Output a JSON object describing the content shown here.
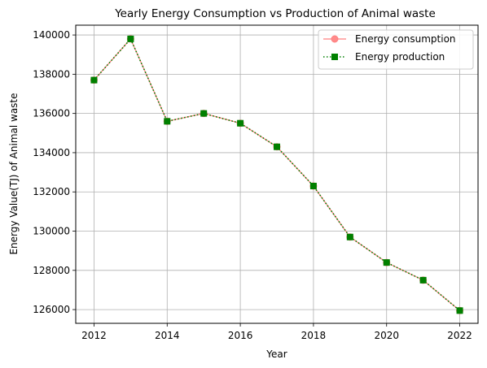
{
  "chart_data": {
    "type": "line",
    "title": "Yearly Energy Consumption vs Production of Animal waste",
    "xlabel": "Year",
    "ylabel": "Energy Value(TJ) of Animal waste",
    "x": [
      2012,
      2013,
      2014,
      2015,
      2016,
      2017,
      2018,
      2019,
      2020,
      2021,
      2022
    ],
    "xlim": [
      2011.5,
      2022.5
    ],
    "ylim": [
      125300,
      140500
    ],
    "xticks": [
      2012,
      2014,
      2016,
      2018,
      2020,
      2022
    ],
    "yticks": [
      126000,
      128000,
      130000,
      132000,
      134000,
      136000,
      138000,
      140000
    ],
    "grid": true,
    "legend_position": "top-right",
    "series": [
      {
        "name": "Energy consumption",
        "color": "#ff7f7f",
        "marker": "circle",
        "line_style": "solid",
        "values": [
          137700,
          139800,
          135600,
          136000,
          135500,
          134300,
          132300,
          129700,
          128400,
          127500,
          125950
        ]
      },
      {
        "name": "Energy production",
        "color": "#008000",
        "marker": "square",
        "line_style": "dotted",
        "values": [
          137700,
          139800,
          135600,
          136000,
          135500,
          134300,
          132300,
          129700,
          128400,
          127500,
          125950
        ]
      }
    ]
  }
}
